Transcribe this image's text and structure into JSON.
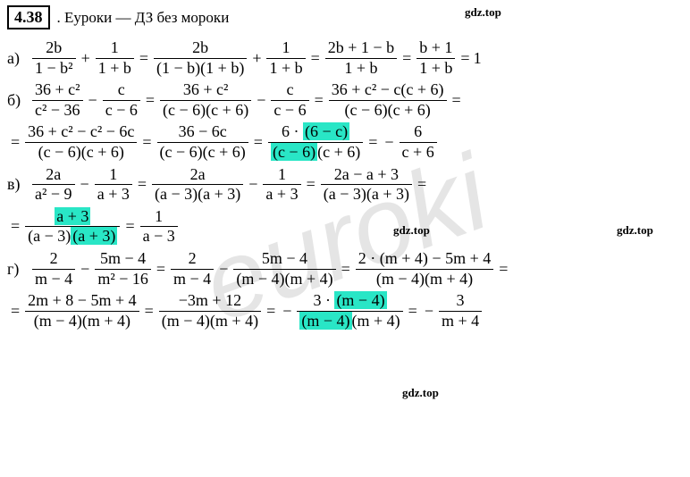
{
  "header": {
    "num": "4.38",
    "text": ". Еуроки  —  ДЗ без мороки"
  },
  "colors": {
    "highlight": "#29e6c6",
    "text": "#000000",
    "bg": "#ffffff",
    "watermark": "rgba(180,180,180,0.35)"
  },
  "watermarks": {
    "small": "gdz.top",
    "big": "euroki"
  },
  "labels": {
    "a": "а)",
    "b": "б)",
    "c": "в)",
    "d": "г)"
  },
  "eqA": {
    "f1n": "2b",
    "f1d": "1 − b²",
    "f2n": "1",
    "f2d": "1 + b",
    "f3n": "2b",
    "f3d": "(1 − b)(1 + b)",
    "f4n": "1",
    "f4d": "1 + b",
    "f5n": "2b + 1 − b",
    "f5d": "1 + b",
    "f6n": "b + 1",
    "f6d": "1 + b",
    "res": "1"
  },
  "eqB": {
    "l1f1n": "36 + c²",
    "l1f1d": "c² − 36",
    "l1f2n": "c",
    "l1f2d": "c − 6",
    "l1f3n": "36 + c²",
    "l1f3d": "(c − 6)(c + 6)",
    "l1f4n": "c",
    "l1f4d": "c − 6",
    "l1f5n": "36 + c² − c(c + 6)",
    "l1f5d": "(c − 6)(c + 6)",
    "l2f1n": "36 + c² − c² − 6c",
    "l2f1d": "(c − 6)(c + 6)",
    "l2f2n": "36 − 6c",
    "l2f2d": "(c − 6)(c + 6)",
    "l2f3n_a": "6 · ",
    "l2f3n_b": "(6 − c)",
    "l2f3d_a": "(c − 6)",
    "l2f3d_b": "(c + 6)",
    "l2resn": "6",
    "l2resd": "c + 6"
  },
  "eqC": {
    "l1f1n": "2a",
    "l1f1d": "a² − 9",
    "l1f2n": "1",
    "l1f2d": "a + 3",
    "l1f3n": "2a",
    "l1f3d": "(a − 3)(a + 3)",
    "l1f4n": "1",
    "l1f4d": "a + 3",
    "l1f5n": "2a − a + 3",
    "l1f5d": "(a − 3)(a + 3)",
    "l2f1n": "a + 3",
    "l2f1d_a": "(a − 3)",
    "l2f1d_b": "(a + 3)",
    "l2resn": "1",
    "l2resd": "a − 3"
  },
  "eqD": {
    "l1f1n": "2",
    "l1f1d": "m − 4",
    "l1f2n": "5m − 4",
    "l1f2d": "m² − 16",
    "l1f3n": "2",
    "l1f3d": "m − 4",
    "l1f4n": "5m − 4",
    "l1f4d": "(m − 4)(m + 4)",
    "l1f5n": "2 · (m + 4) − 5m + 4",
    "l1f5d": "(m − 4)(m + 4)",
    "l2f1n": "2m + 8 − 5m + 4",
    "l2f1d": "(m − 4)(m + 4)",
    "l2f2n": "−3m + 12",
    "l2f2d": "(m − 4)(m + 4)",
    "l2f3n_a": "3 · ",
    "l2f3n_b": "(m − 4)",
    "l2f3d_a": "(m − 4)",
    "l2f3d_b": "(m + 4)",
    "l2resn": "3",
    "l2resd": "m + 4"
  }
}
